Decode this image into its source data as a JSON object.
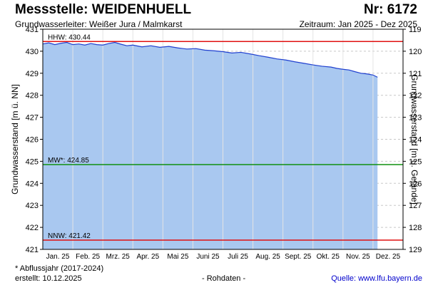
{
  "header": {
    "title": "Messstelle: WEIDENHUELL",
    "nr": "Nr: 6172",
    "aquifer": "Grundwasserleiter:   Weißer Jura / Malmkarst",
    "period": "Zeitraum: Jan 2025 - Dez 2025"
  },
  "footer": {
    "footnote": "* Abflussjahr (2017-2024)",
    "created": "erstellt:  10.12.2025",
    "rawdata": "- Rohdaten -",
    "source": "Quelle: www.lfu.bayern.de"
  },
  "colors": {
    "fill": "#a9c8f0",
    "line": "#1f3fcf",
    "hhw": "#e01010",
    "nnw": "#e01010",
    "mw": "#109010",
    "grid": "#c8c8c8"
  },
  "chart_data": {
    "type": "area",
    "ylabel": "Grundwasserstand [m ü. NN]",
    "y2label": "Grundwasserstand [m u. Gelände]",
    "ylim": [
      421,
      431
    ],
    "y2lim": [
      129,
      119
    ],
    "yticks": [
      421,
      422,
      423,
      424,
      425,
      426,
      427,
      428,
      429,
      430,
      431
    ],
    "y2ticks": [
      119,
      120,
      121,
      122,
      123,
      124,
      125,
      126,
      127,
      128,
      129
    ],
    "months": [
      "Jan. 25",
      "Feb. 25",
      "Mrz. 25",
      "Apr. 25",
      "Mai 25",
      "Juni 25",
      "Juli 25",
      "Aug. 25",
      "Sept. 25",
      "Okt. 25",
      "Nov. 25",
      "Dez. 25"
    ],
    "grid": true,
    "reference_lines": [
      {
        "label": "HHW: 430.44",
        "value": 430.44,
        "kind": "hhw"
      },
      {
        "label": "MW*: 424.85",
        "value": 424.85,
        "kind": "mw"
      },
      {
        "label": "NNW: 421.42",
        "value": 421.42,
        "kind": "nnw"
      }
    ],
    "series": [
      {
        "x": [
          0.0,
          0.2,
          0.4,
          0.6,
          0.8,
          1.0,
          1.2,
          1.4,
          1.6,
          1.8,
          2.0,
          2.2,
          2.4,
          2.6,
          2.8,
          3.0,
          3.3,
          3.6,
          3.9,
          4.2,
          4.5,
          4.8,
          5.1,
          5.4,
          5.7,
          6.0,
          6.3,
          6.6,
          6.9,
          7.2,
          7.5,
          7.8,
          8.1,
          8.4,
          8.7,
          9.0,
          9.3,
          9.6,
          9.8,
          10.0,
          10.2,
          10.4,
          10.6,
          10.8,
          11.0,
          11.15
        ],
        "values": [
          430.33,
          430.38,
          430.3,
          430.36,
          430.4,
          430.3,
          430.33,
          430.28,
          430.35,
          430.3,
          430.28,
          430.35,
          430.4,
          430.32,
          430.25,
          430.28,
          430.2,
          430.25,
          430.18,
          430.22,
          430.15,
          430.1,
          430.12,
          430.05,
          430.02,
          429.98,
          429.92,
          429.95,
          429.88,
          429.8,
          429.73,
          429.65,
          429.6,
          429.52,
          429.45,
          429.38,
          429.32,
          429.28,
          429.22,
          429.18,
          429.15,
          429.07,
          429.0,
          428.97,
          428.92,
          428.82
        ]
      }
    ]
  }
}
